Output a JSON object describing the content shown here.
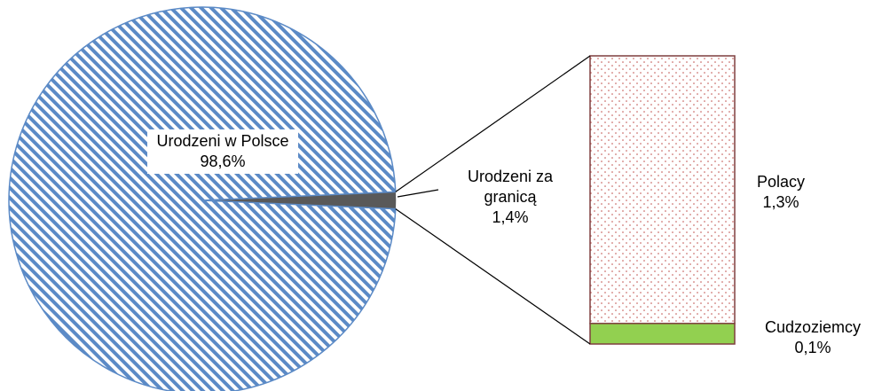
{
  "chart_data": [
    {
      "type": "pie",
      "categories": [
        "Urodzeni w Polsce",
        "Urodzeni za granicą"
      ],
      "values": [
        98.6,
        1.4
      ],
      "value_labels": [
        "98,6%",
        "1,4%"
      ],
      "colors": [
        "#5b8ac6",
        "#595959"
      ]
    },
    {
      "type": "bar",
      "categories": [
        "Polacy",
        "Cudzoziemcy"
      ],
      "values": [
        1.3,
        0.1
      ],
      "value_labels": [
        "1,3%",
        "0,1%"
      ],
      "colors": [
        "#c0504d",
        "#92d050"
      ]
    }
  ]
}
